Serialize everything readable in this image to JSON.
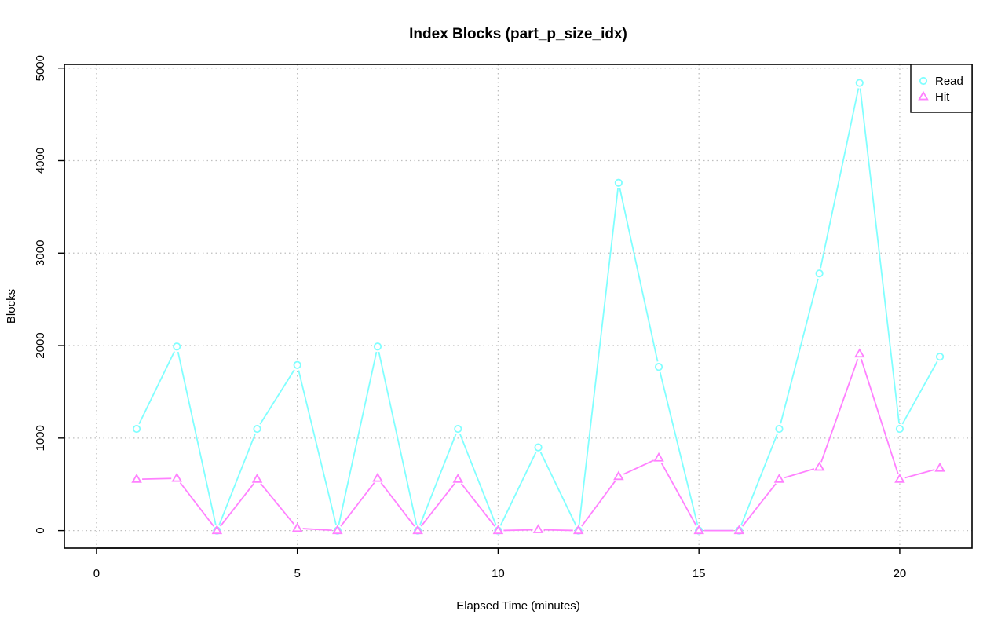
{
  "chart_data": {
    "type": "line",
    "title": "Index Blocks (part_p_size_idx)",
    "xlabel": "Elapsed Time (minutes)",
    "ylabel": "Blocks",
    "xlim": [
      -0.8,
      21.8
    ],
    "ylim": [
      -190,
      5040
    ],
    "x_ticks": [
      0,
      5,
      10,
      15,
      20
    ],
    "y_ticks": [
      0,
      1000,
      2000,
      3000,
      4000,
      5000
    ],
    "grid": true,
    "legend_position": "top-right",
    "x": [
      1,
      2,
      3,
      4,
      5,
      6,
      7,
      8,
      9,
      10,
      11,
      12,
      13,
      14,
      15,
      16,
      17,
      18,
      19,
      20,
      21
    ],
    "series": [
      {
        "name": "Read",
        "color": "#80ffff",
        "marker": "circle",
        "values": [
          1100,
          1990,
          0,
          1100,
          1790,
          0,
          1990,
          0,
          1100,
          0,
          900,
          0,
          3760,
          1770,
          0,
          0,
          1100,
          2780,
          4840,
          1100,
          1880
        ]
      },
      {
        "name": "Hit",
        "color": "#ff80ff",
        "marker": "triangle",
        "values": [
          555,
          565,
          0,
          555,
          25,
          0,
          565,
          0,
          555,
          0,
          10,
          0,
          585,
          785,
          0,
          0,
          555,
          685,
          1910,
          555,
          675
        ]
      }
    ]
  }
}
